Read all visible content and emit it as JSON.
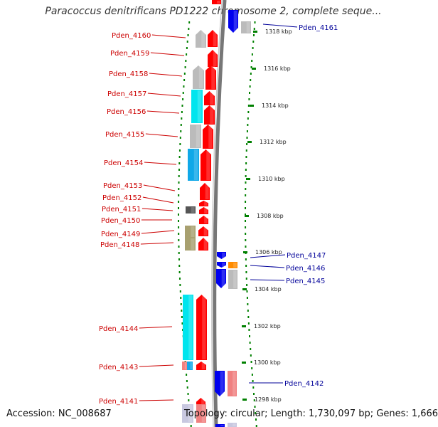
{
  "title": "Paracoccus denitrificans PD1222 chromosome 2, complete seque...",
  "footer": {
    "accession": "Accession: NC_008687",
    "summary": "Topology: circular; Length: 1,730,097 bp; Genes: 1,666"
  },
  "colors": {
    "left_label": "#cc0000",
    "right_label": "#000099",
    "guide": "#008000",
    "backbone": "#777777",
    "red": "#ff0000",
    "grey": "#bbbbbb",
    "cyan": "#00e5ee",
    "sky": "#10a8e8",
    "olive": "#a8a070",
    "darkgrey": "#555555",
    "blue": "#0000ee",
    "orange": "#ff8c00",
    "pink": "#f08080",
    "lavender": "#c8c8e0"
  },
  "ticks": [
    "1318 kbp",
    "1316 kbp",
    "1314 kbp",
    "1312 kbp",
    "1310 kbp",
    "1308 kbp",
    "1306 kbp",
    "1304 kbp",
    "1302 kbp",
    "1300 kbp",
    "1298 kbp"
  ],
  "left_labels": [
    "Pden_4160",
    "Pden_4159",
    "Pden_4158",
    "Pden_4157",
    "Pden_4156",
    "Pden_4155",
    "Pden_4154",
    "Pden_4153",
    "Pden_4152",
    "Pden_4151",
    "Pden_4150",
    "Pden_4149",
    "Pden_4148",
    "Pden_4144",
    "Pden_4143",
    "Pden_4141"
  ],
  "right_labels": [
    "Pden_4161",
    "Pden_4147",
    "Pden_4146",
    "Pden_4145",
    "Pden_4142"
  ]
}
